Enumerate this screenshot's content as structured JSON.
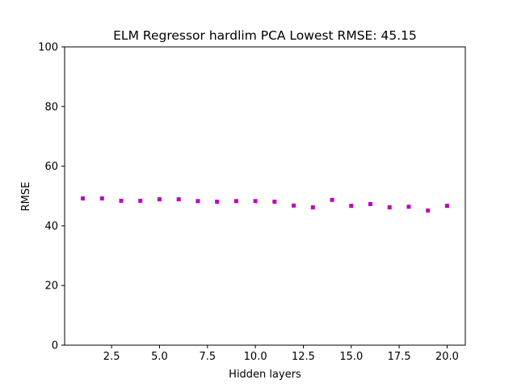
{
  "chart_data": {
    "type": "scatter",
    "title": "ELM Regressor hardlim PCA Lowest RMSE: 45.15",
    "xlabel": "Hidden layers",
    "ylabel": "RMSE",
    "xlim": [
      0.05,
      20.95
    ],
    "ylim": [
      0,
      100
    ],
    "xticks": [
      2.5,
      5.0,
      7.5,
      10.0,
      12.5,
      15.0,
      17.5,
      20.0
    ],
    "xtick_labels": [
      "2.5",
      "5.0",
      "7.5",
      "10.0",
      "12.5",
      "15.0",
      "17.5",
      "20.0"
    ],
    "yticks": [
      0,
      20,
      40,
      60,
      80,
      100
    ],
    "ytick_labels": [
      "0",
      "20",
      "40",
      "60",
      "80",
      "100"
    ],
    "grid": false,
    "marker_color": "#bf00bf",
    "x": [
      1,
      2,
      3,
      4,
      5,
      6,
      7,
      8,
      9,
      10,
      11,
      12,
      13,
      14,
      15,
      16,
      17,
      18,
      19,
      20
    ],
    "y": [
      49.2,
      49.2,
      48.4,
      48.4,
      48.9,
      48.9,
      48.3,
      48.1,
      48.3,
      48.3,
      48.1,
      46.8,
      46.2,
      48.7,
      46.7,
      47.3,
      46.2,
      46.4,
      45.15,
      46.7
    ]
  }
}
